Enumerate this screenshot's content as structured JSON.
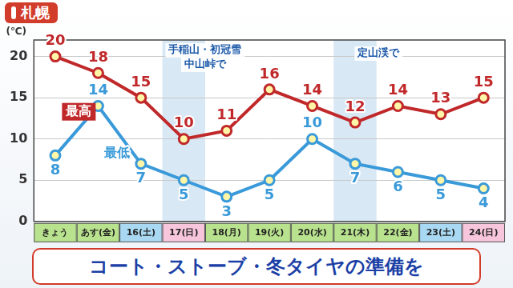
{
  "chart_data": {
    "type": "line",
    "title": "札幌",
    "subtitle": "コート・ストーブ・冬タイヤの準備を",
    "y_label": "(℃)",
    "categories": [
      "きょう",
      "あす(金)",
      "16(土)",
      "17(日)",
      "18(月)",
      "19(火)",
      "20(水)",
      "21(木)",
      "22(金)",
      "23(土)",
      "24(日)"
    ],
    "series": [
      {
        "name": "最高",
        "color": "#c0282a",
        "marker": "circle",
        "values": [
          20,
          18,
          15,
          10,
          11,
          16,
          14,
          12,
          14,
          13,
          15
        ]
      },
      {
        "name": "最低",
        "color": "#3a9ad9",
        "marker": "circle",
        "values": [
          8,
          14,
          7,
          5,
          3,
          5,
          10,
          7,
          6,
          5,
          4
        ]
      }
    ],
    "ylim": [
      0,
      22
    ],
    "yticks": [
      0,
      5,
      10,
      15,
      20
    ],
    "grid": true,
    "data_labels": true,
    "annotations": [
      "手稲山・初冠雪",
      "中山峠で",
      "定山渓で"
    ]
  }
}
